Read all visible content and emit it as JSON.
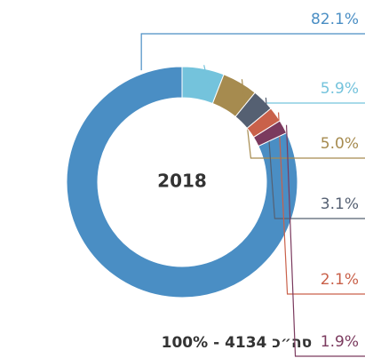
{
  "chart_data": {
    "type": "donut",
    "title": "2018",
    "categories": [
      null,
      null,
      null,
      null,
      null,
      null
    ],
    "values": [
      82.1,
      5.9,
      5.0,
      3.1,
      2.1,
      1.9
    ],
    "value_labels": [
      "82.1%",
      "5.9%",
      "5.0%",
      "3.1%",
      "2.1%",
      "1.9%"
    ],
    "colors": [
      "#4a8ec4",
      "#74c3dc",
      "#a68b4f",
      "#556072",
      "#c9614a",
      "#7b3a5e"
    ],
    "total_label": "סה״כ 4134 - 100%"
  }
}
